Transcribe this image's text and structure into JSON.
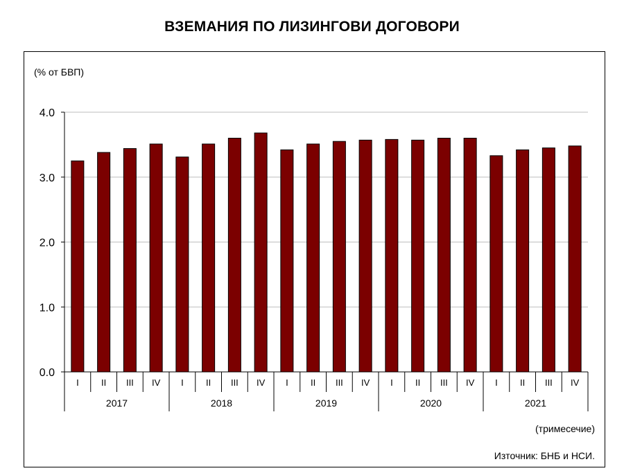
{
  "chart_data": {
    "type": "bar",
    "title": "ВЗЕМАНИЯ ПО ЛИЗИНГОВИ ДОГОВОРИ",
    "ylabel": "(% от БВП)",
    "xlabel": "(тримесечие)",
    "source": "Източник:  БНБ и НСИ.",
    "ylim": [
      0,
      4
    ],
    "yticks": [
      "0.0",
      "1.0",
      "2.0",
      "3.0",
      "4.0"
    ],
    "grid": true,
    "bar_color": "#7b0000",
    "categories": [
      "I",
      "II",
      "III",
      "IV",
      "I",
      "II",
      "III",
      "IV",
      "I",
      "II",
      "III",
      "IV",
      "I",
      "II",
      "III",
      "IV",
      "I",
      "II",
      "III",
      "IV"
    ],
    "groups": [
      "2017",
      "2018",
      "2019",
      "2020",
      "2021"
    ],
    "values": [
      3.25,
      3.38,
      3.44,
      3.51,
      3.31,
      3.51,
      3.6,
      3.68,
      3.42,
      3.51,
      3.55,
      3.57,
      3.58,
      3.57,
      3.6,
      3.6,
      3.33,
      3.42,
      3.45,
      3.48
    ]
  }
}
